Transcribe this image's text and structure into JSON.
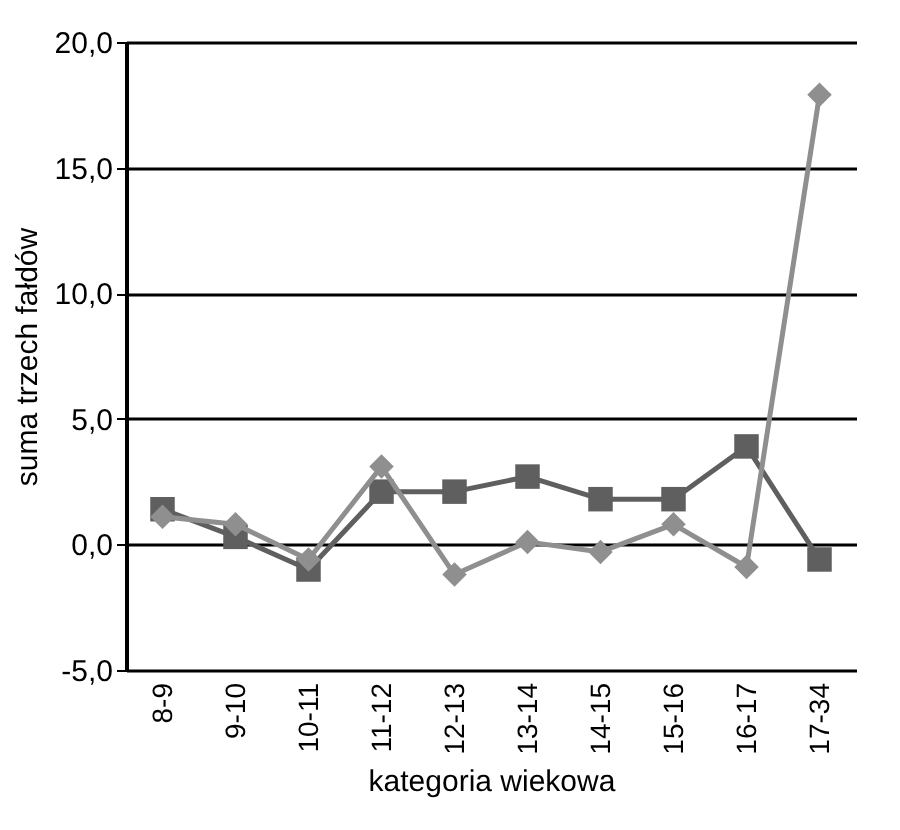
{
  "chart_data": {
    "type": "line",
    "xlabel": "kategoria wiekowa",
    "ylabel": "suma trzech fałdów",
    "categories": [
      "8-9",
      "9-10",
      "10-11",
      "11-12",
      "12-13",
      "13-14",
      "14-15",
      "15-16",
      "16-17",
      "17-34"
    ],
    "series": [
      {
        "color": "#5f5f5f",
        "marker": "square",
        "values": [
          1.4,
          0.3,
          -1.0,
          2.1,
          2.1,
          2.7,
          1.8,
          1.8,
          3.9,
          -0.6
        ]
      },
      {
        "color": "#8f8f8f",
        "marker": "diamond",
        "values": [
          1.1,
          0.8,
          -0.6,
          3.1,
          -1.2,
          0.1,
          -0.3,
          0.8,
          -0.9,
          17.9
        ]
      }
    ],
    "ylim": [
      -5,
      20
    ],
    "yticks": [
      {
        "value": -5,
        "label": "-5,0"
      },
      {
        "value": 0,
        "label": "0,0"
      },
      {
        "value": 5,
        "label": "5,0"
      },
      {
        "value": 10,
        "label": "10,0"
      },
      {
        "value": 15,
        "label": "15,0"
      },
      {
        "value": 20,
        "label": "20,0"
      }
    ],
    "grid": "y",
    "line_style": "solid"
  }
}
